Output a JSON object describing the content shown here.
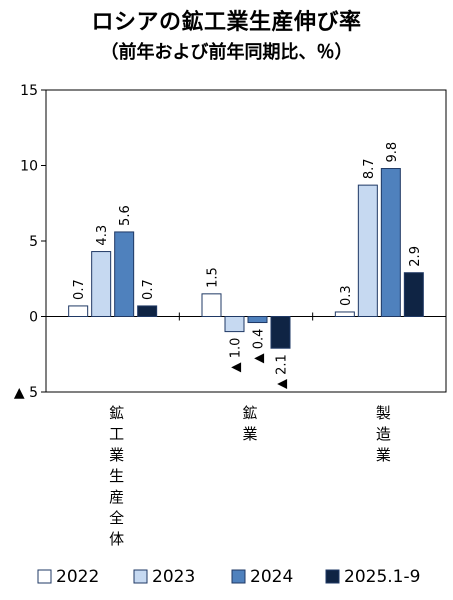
{
  "chart_data": {
    "type": "bar",
    "title": "ロシアの鉱工業生産伸び率",
    "subtitle": "（前年および前年同期比、％）",
    "categories": [
      "鉱工業生産全体",
      "鉱業",
      "製造業"
    ],
    "series": [
      {
        "name": "2022",
        "values": [
          0.7,
          1.5,
          0.3
        ],
        "labels": [
          "0.7",
          "1.5",
          "0.3"
        ],
        "color": "#ffffff"
      },
      {
        "name": "2023",
        "values": [
          4.3,
          -1.0,
          8.7
        ],
        "labels": [
          "4.3",
          "▲ 1.0",
          "8.7"
        ],
        "color": "#c6d9f1"
      },
      {
        "name": "2024",
        "values": [
          5.6,
          -0.4,
          9.8
        ],
        "labels": [
          "5.6",
          "▲ 0.4",
          "9.8"
        ],
        "color": "#4f81bd"
      },
      {
        "name": "2025.1-9",
        "values": [
          0.7,
          -2.1,
          2.9
        ],
        "labels": [
          "0.7",
          "▲ 2.1",
          "2.9"
        ],
        "color": "#0f2444"
      }
    ],
    "ylim": [
      -5,
      15
    ],
    "yticks": [
      {
        "value": 15,
        "label": "15"
      },
      {
        "value": 10,
        "label": "10"
      },
      {
        "value": 5,
        "label": "5"
      },
      {
        "value": 0,
        "label": "0"
      },
      {
        "value": -5,
        "label": "▲ 5"
      }
    ],
    "grid": false,
    "legend_position": "bottom"
  }
}
